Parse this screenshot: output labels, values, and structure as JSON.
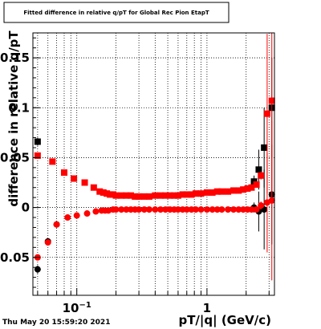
{
  "chart_data": {
    "type": "scatter",
    "title": "Fitted difference in relative q/pT for Global Rec Pion EtapT",
    "xlabel": "pT/|q| (GeV/c)",
    "ylabel": "difference in relative q/pT",
    "xscale": "log",
    "xlim": [
      0.046,
      3.3
    ],
    "ylim": [
      -0.088,
      0.175
    ],
    "x_tick_labels": [
      {
        "value": 0.1,
        "base": "10",
        "exp": "−1"
      },
      {
        "value": 1,
        "base": "1",
        "exp": ""
      }
    ],
    "y_ticks": [
      -0.05,
      0,
      0.05,
      0.1,
      0.15
    ],
    "y_tick_labels": [
      "-0.05",
      "0",
      "0.05",
      "0.1",
      "0.15"
    ],
    "grid": true,
    "footer": "Thu May 20 15:59:20 2021",
    "series": [
      {
        "color": "#000000",
        "marker": "circle",
        "x": [
          0.05,
          0.06,
          0.07,
          2.3,
          2.5,
          2.75,
          3.15
        ],
        "y": [
          -0.062,
          -0.034,
          -0.017,
          0.0,
          -0.004,
          -0.002,
          0.013
        ],
        "yerr": [
          0.004,
          0.003,
          0.002,
          0.005,
          0.02,
          0.04,
          0.05
        ]
      },
      {
        "color": "#000000",
        "marker": "square",
        "x": [
          0.05,
          2.3,
          2.5,
          2.75,
          3.15
        ],
        "y": [
          0.066,
          0.026,
          0.038,
          0.06,
          0.1
        ],
        "yerr": [
          0.004,
          0.006,
          0.02,
          0.04,
          0.05
        ]
      },
      {
        "color": "#ff0000",
        "marker": "circle",
        "x": [
          0.05,
          0.06,
          0.07,
          0.085,
          0.1,
          0.12,
          0.14,
          0.155,
          0.165,
          0.175,
          0.19,
          0.2,
          0.22,
          0.24,
          0.26,
          0.28,
          0.3,
          0.33,
          0.36,
          0.4,
          0.44,
          0.48,
          0.52,
          0.56,
          0.6,
          0.65,
          0.7,
          0.76,
          0.82,
          0.9,
          1.0,
          1.1,
          1.2,
          1.3,
          1.45,
          1.6,
          1.75,
          1.9,
          2.05,
          2.2,
          2.4,
          2.6,
          2.9,
          3.15
        ],
        "y": [
          -0.05,
          -0.035,
          -0.017,
          -0.01,
          -0.008,
          -0.006,
          -0.004,
          -0.003,
          -0.003,
          -0.003,
          -0.002,
          -0.002,
          -0.002,
          -0.002,
          -0.002,
          -0.002,
          -0.002,
          -0.002,
          -0.002,
          -0.002,
          -0.002,
          -0.002,
          -0.002,
          -0.002,
          -0.002,
          -0.002,
          -0.002,
          -0.002,
          -0.002,
          -0.002,
          -0.002,
          -0.002,
          -0.002,
          -0.002,
          -0.002,
          -0.002,
          -0.002,
          -0.002,
          -0.002,
          -0.002,
          -0.002,
          0.002,
          0.005,
          0.007
        ],
        "yerr": [
          0.002,
          0.002,
          0.001,
          0.001,
          0.001,
          0.001,
          0.001,
          0.001,
          0.001,
          0.001,
          0.001,
          0.001,
          0.001,
          0.001,
          0.001,
          0.001,
          0.001,
          0.001,
          0.001,
          0.001,
          0.001,
          0.001,
          0.001,
          0.001,
          0.001,
          0.001,
          0.001,
          0.001,
          0.001,
          0.001,
          0.001,
          0.001,
          0.001,
          0.001,
          0.001,
          0.001,
          0.001,
          0.001,
          0.001,
          0.001,
          0.002,
          0.004,
          0.05,
          0.08
        ]
      },
      {
        "color": "#ff0000",
        "marker": "square",
        "x": [
          0.05,
          0.065,
          0.08,
          0.095,
          0.115,
          0.135,
          0.15,
          0.16,
          0.17,
          0.18,
          0.19,
          0.2,
          0.22,
          0.24,
          0.26,
          0.28,
          0.3,
          0.33,
          0.36,
          0.4,
          0.44,
          0.48,
          0.52,
          0.56,
          0.6,
          0.65,
          0.7,
          0.76,
          0.82,
          0.9,
          1.0,
          1.1,
          1.2,
          1.3,
          1.45,
          1.6,
          1.75,
          1.9,
          2.05,
          2.2,
          2.4,
          2.6,
          2.9,
          3.15
        ],
        "y": [
          0.052,
          0.046,
          0.035,
          0.029,
          0.025,
          0.02,
          0.016,
          0.015,
          0.014,
          0.013,
          0.013,
          0.012,
          0.012,
          0.012,
          0.012,
          0.011,
          0.011,
          0.011,
          0.011,
          0.012,
          0.012,
          0.012,
          0.012,
          0.012,
          0.012,
          0.013,
          0.013,
          0.013,
          0.014,
          0.014,
          0.015,
          0.015,
          0.016,
          0.016,
          0.016,
          0.017,
          0.017,
          0.018,
          0.019,
          0.02,
          0.023,
          0.032,
          0.094,
          0.107
        ],
        "yerr": [
          0.002,
          0.002,
          0.001,
          0.001,
          0.001,
          0.001,
          0.001,
          0.001,
          0.001,
          0.001,
          0.001,
          0.001,
          0.001,
          0.001,
          0.001,
          0.001,
          0.001,
          0.001,
          0.001,
          0.001,
          0.001,
          0.001,
          0.001,
          0.001,
          0.001,
          0.001,
          0.001,
          0.001,
          0.001,
          0.001,
          0.001,
          0.001,
          0.001,
          0.001,
          0.001,
          0.001,
          0.001,
          0.001,
          0.001,
          0.001,
          0.002,
          0.004,
          0.08,
          0.1
        ]
      }
    ]
  }
}
